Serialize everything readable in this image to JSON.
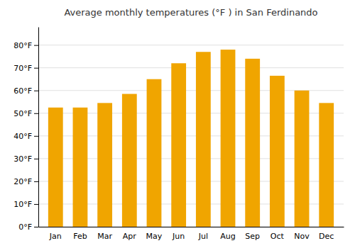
{
  "chart_data": {
    "type": "bar",
    "title": "Average monthly temperatures (°F ) in San Ferdinando",
    "categories": [
      "Jan",
      "Feb",
      "Mar",
      "Apr",
      "May",
      "Jun",
      "Jul",
      "Aug",
      "Sep",
      "Oct",
      "Nov",
      "Dec"
    ],
    "values": [
      52.5,
      52.5,
      54.5,
      58.5,
      65,
      72,
      77,
      78,
      74,
      66.5,
      60,
      54.5
    ],
    "color": "#F0A500",
    "ylim": [
      0,
      88
    ],
    "yticks": [
      {
        "value": 0,
        "label": "0°F"
      },
      {
        "value": 10,
        "label": "10°F"
      },
      {
        "value": 20,
        "label": "20°F"
      },
      {
        "value": 30,
        "label": "30°F"
      },
      {
        "value": 40,
        "label": "40°F"
      },
      {
        "value": 50,
        "label": "50°F"
      },
      {
        "value": 60,
        "label": "60°F"
      },
      {
        "value": 70,
        "label": "70°F"
      },
      {
        "value": 80,
        "label": "80°F"
      }
    ],
    "grid": true
  }
}
